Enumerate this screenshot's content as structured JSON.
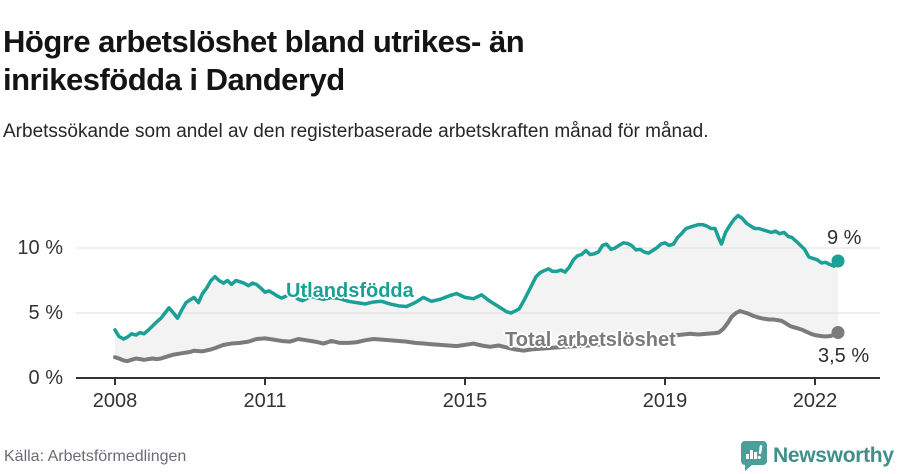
{
  "header": {
    "title": "Högre arbetslöshet bland utrikes- än inrikesfödda i Danderyd",
    "subtitle": "Arbetssökande som andel av den registerbaserade arbetskraften månad för månad."
  },
  "footer": {
    "source": "Källa: Arbetsförmedlingen",
    "brand": "Newsworthy"
  },
  "colors": {
    "accent_teal": "#1aa096",
    "line_gray": "#7b7b7b",
    "fill_between": "#f3f3f3",
    "grid": "#dcdcdc",
    "axis": "#333333",
    "brand_teal": "#4c9f99"
  },
  "chart_data": {
    "type": "line",
    "unit": "%",
    "grid": "horizontal-only",
    "legend_position": "inline-labels",
    "x_axis": {
      "min": 2008,
      "max": 2022.5,
      "ticks": [
        {
          "t": 2008,
          "label": "2008"
        },
        {
          "t": 2011,
          "label": "2011"
        },
        {
          "t": 2015,
          "label": "2015"
        },
        {
          "t": 2019,
          "label": "2019"
        },
        {
          "t": 2022,
          "label": "2022"
        }
      ]
    },
    "y_axis": {
      "range": [
        0,
        13
      ],
      "ticks": [
        {
          "v": 0,
          "label": "0 %"
        },
        {
          "v": 5,
          "label": "5 %"
        },
        {
          "v": 10,
          "label": "10 %"
        }
      ]
    },
    "fill_between_series": true,
    "series": [
      {
        "name": "utlandsfodda",
        "label": "Utlandsfödda",
        "color": "#1aa096",
        "end_value": 9,
        "end_label": "9 %",
        "points": [
          [
            2008,
            3.7
          ],
          [
            2008.08,
            3.2
          ],
          [
            2008.17,
            3.0
          ],
          [
            2008.25,
            3.15
          ],
          [
            2008.33,
            3.4
          ],
          [
            2008.42,
            3.3
          ],
          [
            2008.5,
            3.5
          ],
          [
            2008.58,
            3.4
          ],
          [
            2008.67,
            3.7
          ],
          [
            2008.75,
            4.0
          ],
          [
            2008.83,
            4.3
          ],
          [
            2008.92,
            4.6
          ],
          [
            2009,
            5.0
          ],
          [
            2009.08,
            5.4
          ],
          [
            2009.17,
            5.0
          ],
          [
            2009.25,
            4.6
          ],
          [
            2009.33,
            5.2
          ],
          [
            2009.42,
            5.8
          ],
          [
            2009.5,
            6.0
          ],
          [
            2009.58,
            6.2
          ],
          [
            2009.67,
            5.8
          ],
          [
            2009.75,
            6.5
          ],
          [
            2009.83,
            6.9
          ],
          [
            2009.92,
            7.5
          ],
          [
            2010,
            7.8
          ],
          [
            2010.08,
            7.5
          ],
          [
            2010.17,
            7.3
          ],
          [
            2010.25,
            7.5
          ],
          [
            2010.33,
            7.2
          ],
          [
            2010.42,
            7.5
          ],
          [
            2010.5,
            7.4
          ],
          [
            2010.58,
            7.3
          ],
          [
            2010.67,
            7.1
          ],
          [
            2010.75,
            7.3
          ],
          [
            2010.83,
            7.2
          ],
          [
            2010.92,
            6.9
          ],
          [
            2011,
            6.6
          ],
          [
            2011.08,
            6.7
          ],
          [
            2011.17,
            6.5
          ],
          [
            2011.25,
            6.3
          ],
          [
            2011.33,
            6.15
          ],
          [
            2011.42,
            6.3
          ],
          [
            2011.5,
            6.5
          ],
          [
            2011.58,
            6.3
          ],
          [
            2011.67,
            6.05
          ],
          [
            2011.75,
            5.95
          ],
          [
            2011.83,
            6.1
          ],
          [
            2011.92,
            6.3
          ],
          [
            2012,
            6.2
          ],
          [
            2012.17,
            6.05
          ],
          [
            2012.33,
            6.2
          ],
          [
            2012.5,
            6.1
          ],
          [
            2012.67,
            5.9
          ],
          [
            2012.83,
            5.8
          ],
          [
            2013,
            5.7
          ],
          [
            2013.17,
            5.85
          ],
          [
            2013.33,
            5.9
          ],
          [
            2013.5,
            5.7
          ],
          [
            2013.67,
            5.55
          ],
          [
            2013.83,
            5.5
          ],
          [
            2014,
            5.8
          ],
          [
            2014.17,
            6.2
          ],
          [
            2014.33,
            5.9
          ],
          [
            2014.5,
            6.05
          ],
          [
            2014.67,
            6.3
          ],
          [
            2014.83,
            6.5
          ],
          [
            2015,
            6.2
          ],
          [
            2015.17,
            6.1
          ],
          [
            2015.33,
            6.4
          ],
          [
            2015.5,
            5.9
          ],
          [
            2015.67,
            5.5
          ],
          [
            2015.83,
            5.1
          ],
          [
            2015.92,
            5.0
          ],
          [
            2016,
            5.15
          ],
          [
            2016.08,
            5.3
          ],
          [
            2016.17,
            5.9
          ],
          [
            2016.25,
            6.5
          ],
          [
            2016.33,
            7.1
          ],
          [
            2016.42,
            7.8
          ],
          [
            2016.5,
            8.1
          ],
          [
            2016.58,
            8.25
          ],
          [
            2016.67,
            8.4
          ],
          [
            2016.75,
            8.2
          ],
          [
            2016.83,
            8.2
          ],
          [
            2016.92,
            8.3
          ],
          [
            2017,
            8.15
          ],
          [
            2017.08,
            8.5
          ],
          [
            2017.17,
            9.1
          ],
          [
            2017.25,
            9.4
          ],
          [
            2017.33,
            9.5
          ],
          [
            2017.42,
            9.8
          ],
          [
            2017.5,
            9.5
          ],
          [
            2017.58,
            9.55
          ],
          [
            2017.67,
            9.7
          ],
          [
            2017.75,
            10.2
          ],
          [
            2017.83,
            10.3
          ],
          [
            2017.92,
            9.9
          ],
          [
            2018,
            10.0
          ],
          [
            2018.08,
            10.2
          ],
          [
            2018.17,
            10.4
          ],
          [
            2018.25,
            10.35
          ],
          [
            2018.33,
            10.2
          ],
          [
            2018.42,
            9.85
          ],
          [
            2018.5,
            9.9
          ],
          [
            2018.58,
            9.7
          ],
          [
            2018.67,
            9.6
          ],
          [
            2018.75,
            9.8
          ],
          [
            2018.83,
            10.0
          ],
          [
            2018.92,
            10.3
          ],
          [
            2019,
            10.4
          ],
          [
            2019.08,
            10.2
          ],
          [
            2019.17,
            10.3
          ],
          [
            2019.25,
            10.8
          ],
          [
            2019.33,
            11.1
          ],
          [
            2019.42,
            11.5
          ],
          [
            2019.5,
            11.6
          ],
          [
            2019.58,
            11.7
          ],
          [
            2019.67,
            11.8
          ],
          [
            2019.75,
            11.8
          ],
          [
            2019.83,
            11.7
          ],
          [
            2019.92,
            11.5
          ],
          [
            2020,
            11.5
          ],
          [
            2020.08,
            10.7
          ],
          [
            2020.13,
            10.3
          ],
          [
            2020.21,
            11.2
          ],
          [
            2020.29,
            11.7
          ],
          [
            2020.38,
            12.2
          ],
          [
            2020.46,
            12.5
          ],
          [
            2020.54,
            12.3
          ],
          [
            2020.63,
            11.9
          ],
          [
            2020.71,
            11.7
          ],
          [
            2020.79,
            11.5
          ],
          [
            2020.88,
            11.5
          ],
          [
            2020.96,
            11.4
          ],
          [
            2021.04,
            11.3
          ],
          [
            2021.13,
            11.2
          ],
          [
            2021.21,
            11.3
          ],
          [
            2021.29,
            11.1
          ],
          [
            2021.38,
            11.2
          ],
          [
            2021.46,
            10.9
          ],
          [
            2021.54,
            10.8
          ],
          [
            2021.63,
            10.5
          ],
          [
            2021.71,
            10.2
          ],
          [
            2021.79,
            9.9
          ],
          [
            2021.88,
            9.3
          ],
          [
            2021.96,
            9.2
          ],
          [
            2022.04,
            9.1
          ],
          [
            2022.13,
            8.85
          ],
          [
            2022.21,
            8.9
          ],
          [
            2022.29,
            8.75
          ],
          [
            2022.38,
            8.6
          ],
          [
            2022.46,
            9.0
          ]
        ]
      },
      {
        "name": "total-arbetsloshet",
        "label": "Total arbetslöshet",
        "color": "#7b7b7b",
        "end_value": 3.5,
        "end_label": "3,5 %",
        "points": [
          [
            2008,
            1.6
          ],
          [
            2008.08,
            1.5
          ],
          [
            2008.17,
            1.35
          ],
          [
            2008.25,
            1.3
          ],
          [
            2008.33,
            1.4
          ],
          [
            2008.42,
            1.5
          ],
          [
            2008.5,
            1.45
          ],
          [
            2008.58,
            1.4
          ],
          [
            2008.67,
            1.45
          ],
          [
            2008.75,
            1.5
          ],
          [
            2008.83,
            1.45
          ],
          [
            2008.92,
            1.5
          ],
          [
            2009,
            1.6
          ],
          [
            2009.17,
            1.8
          ],
          [
            2009.33,
            1.9
          ],
          [
            2009.5,
            2.0
          ],
          [
            2009.58,
            2.1
          ],
          [
            2009.75,
            2.05
          ],
          [
            2009.92,
            2.2
          ],
          [
            2010,
            2.3
          ],
          [
            2010.17,
            2.55
          ],
          [
            2010.33,
            2.65
          ],
          [
            2010.5,
            2.7
          ],
          [
            2010.67,
            2.8
          ],
          [
            2010.83,
            3.0
          ],
          [
            2011,
            3.05
          ],
          [
            2011.17,
            2.95
          ],
          [
            2011.33,
            2.85
          ],
          [
            2011.5,
            2.8
          ],
          [
            2011.67,
            3.0
          ],
          [
            2011.83,
            2.9
          ],
          [
            2012,
            2.8
          ],
          [
            2012.17,
            2.65
          ],
          [
            2012.33,
            2.85
          ],
          [
            2012.5,
            2.7
          ],
          [
            2012.67,
            2.7
          ],
          [
            2012.83,
            2.75
          ],
          [
            2013,
            2.9
          ],
          [
            2013.17,
            3.0
          ],
          [
            2013.33,
            2.95
          ],
          [
            2013.5,
            2.9
          ],
          [
            2013.67,
            2.85
          ],
          [
            2013.83,
            2.8
          ],
          [
            2014,
            2.7
          ],
          [
            2014.17,
            2.65
          ],
          [
            2014.33,
            2.6
          ],
          [
            2014.5,
            2.55
          ],
          [
            2014.67,
            2.5
          ],
          [
            2014.83,
            2.45
          ],
          [
            2015,
            2.55
          ],
          [
            2015.17,
            2.65
          ],
          [
            2015.33,
            2.5
          ],
          [
            2015.5,
            2.4
          ],
          [
            2015.67,
            2.5
          ],
          [
            2015.83,
            2.35
          ],
          [
            2016,
            2.2
          ],
          [
            2016.17,
            2.1
          ],
          [
            2016.33,
            2.2
          ],
          [
            2016.5,
            2.25
          ],
          [
            2016.67,
            2.3
          ],
          [
            2016.83,
            2.35
          ],
          [
            2017,
            2.4
          ],
          [
            2017.25,
            2.45
          ],
          [
            2017.5,
            2.5
          ],
          [
            2017.75,
            2.6
          ],
          [
            2018,
            2.7
          ],
          [
            2018.25,
            2.8
          ],
          [
            2018.5,
            2.85
          ],
          [
            2018.75,
            3.0
          ],
          [
            2019,
            3.1
          ],
          [
            2019.25,
            3.3
          ],
          [
            2019.5,
            3.4
          ],
          [
            2019.67,
            3.35
          ],
          [
            2019.83,
            3.4
          ],
          [
            2020,
            3.45
          ],
          [
            2020.08,
            3.5
          ],
          [
            2020.17,
            3.8
          ],
          [
            2020.25,
            4.2
          ],
          [
            2020.33,
            4.7
          ],
          [
            2020.42,
            5.0
          ],
          [
            2020.5,
            5.15
          ],
          [
            2020.58,
            5.05
          ],
          [
            2020.67,
            4.95
          ],
          [
            2020.75,
            4.8
          ],
          [
            2020.83,
            4.7
          ],
          [
            2020.92,
            4.6
          ],
          [
            2021,
            4.55
          ],
          [
            2021.08,
            4.5
          ],
          [
            2021.17,
            4.5
          ],
          [
            2021.25,
            4.45
          ],
          [
            2021.33,
            4.4
          ],
          [
            2021.42,
            4.2
          ],
          [
            2021.5,
            4.0
          ],
          [
            2021.58,
            3.9
          ],
          [
            2021.67,
            3.8
          ],
          [
            2021.75,
            3.7
          ],
          [
            2021.83,
            3.55
          ],
          [
            2021.92,
            3.4
          ],
          [
            2022,
            3.3
          ],
          [
            2022.08,
            3.25
          ],
          [
            2022.17,
            3.2
          ],
          [
            2022.25,
            3.2
          ],
          [
            2022.33,
            3.25
          ],
          [
            2022.46,
            3.5
          ]
        ]
      }
    ]
  }
}
